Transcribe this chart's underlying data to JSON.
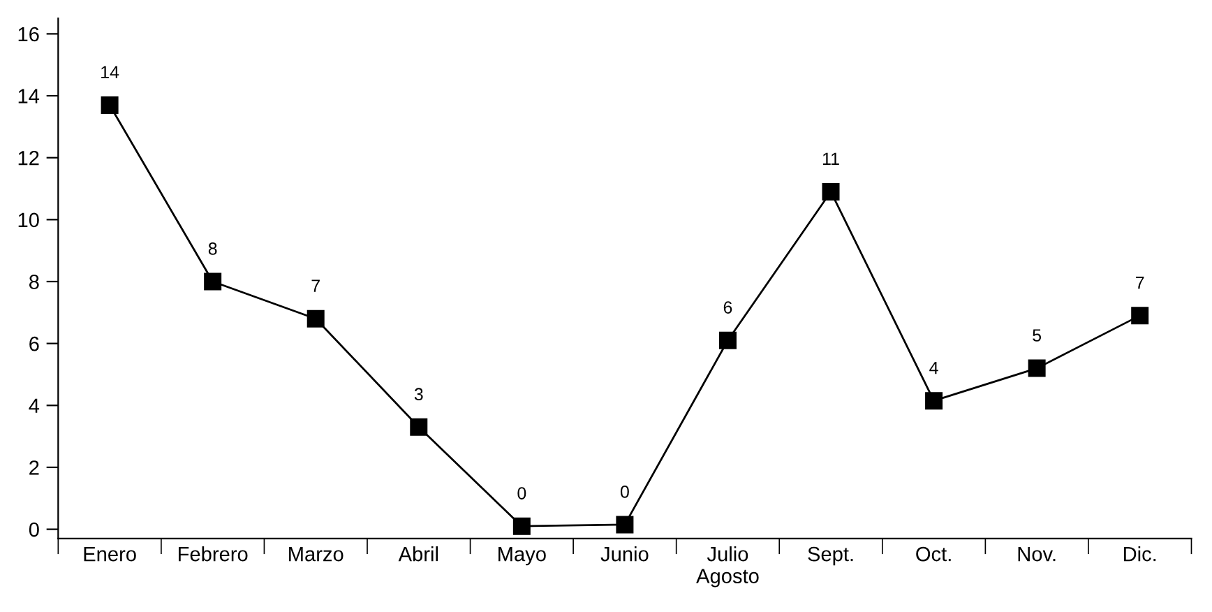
{
  "chart_data": {
    "type": "line",
    "categories": [
      "Enero",
      "Febrero",
      "Marzo",
      "Abril",
      "Mayo",
      "Junio",
      "Julio\nAgosto",
      "Sept.",
      "Oct.",
      "Nov.",
      "Dic."
    ],
    "series": [
      {
        "color": "#000000",
        "values": [
          13.7,
          8.0,
          6.8,
          3.3,
          0.1,
          0.15,
          6.1,
          10.9,
          4.15,
          5.2,
          6.9
        ],
        "value_labels": [
          "14",
          "8",
          "7",
          "3",
          "0",
          "0",
          "6",
          "11",
          "4",
          "5",
          "7"
        ]
      }
    ],
    "ylim": [
      -0.3,
      16.5
    ],
    "yticks": [
      0,
      2,
      4,
      6,
      8,
      10,
      12,
      14,
      16
    ],
    "marker": "square",
    "line_style": "solid",
    "grid": false,
    "legend": false
  }
}
